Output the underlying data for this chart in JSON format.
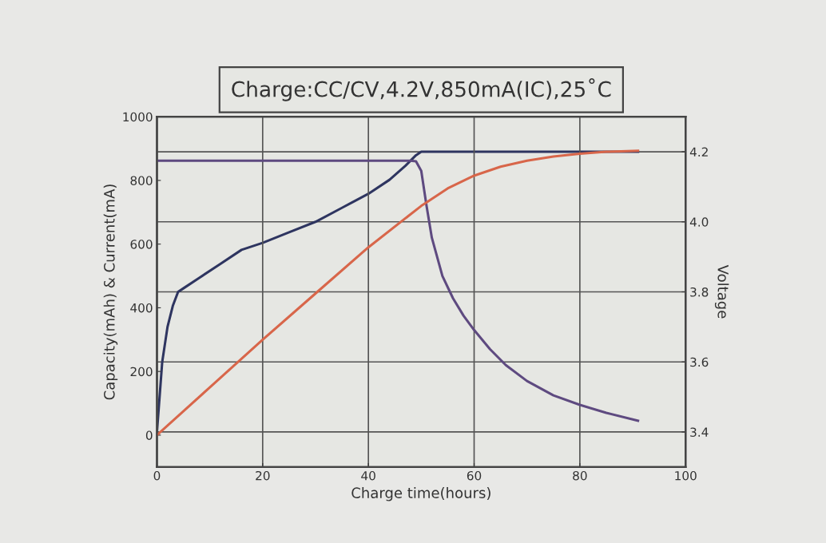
{
  "chart_data": {
    "type": "line",
    "title": "Charge:CC/CV,4.2V,850mA(IC),25˚C",
    "xlabel": "Charge time(hours)",
    "ylabel": "Capacity(mAh) & Current(mA)",
    "y2label": "Voltage",
    "xlim": [
      0,
      100
    ],
    "xticks": [
      0,
      20,
      40,
      60,
      80,
      100
    ],
    "ylim": [
      -100,
      1000
    ],
    "yticks": [
      0,
      200,
      400,
      600,
      800,
      1000
    ],
    "y2lim": [
      3.3,
      4.3
    ],
    "y2ticks": [
      3.4,
      3.6,
      3.8,
      {
        "value": 4.0,
        "label": "4.0"
      },
      4.2
    ],
    "grid": true,
    "marker": "none",
    "line_style": "solid",
    "series": [
      {
        "color": "#2e3560",
        "axis": "y2",
        "x": [
          0,
          0.5,
          1,
          2,
          3,
          4,
          5,
          8,
          12,
          16,
          20,
          25,
          30,
          35,
          40,
          44,
          47,
          49,
          50,
          51,
          60,
          70,
          80,
          91
        ],
        "values": [
          3.4,
          3.5,
          3.6,
          3.7,
          3.76,
          3.8,
          3.81,
          3.84,
          3.88,
          3.92,
          3.94,
          3.97,
          4.0,
          4.04,
          4.08,
          4.12,
          4.16,
          4.19,
          4.2,
          4.2,
          4.2,
          4.2,
          4.2,
          4.2
        ]
      },
      {
        "color": "#5e4a80",
        "x": [
          0,
          10,
          20,
          30,
          40,
          48,
          49,
          50,
          51,
          52,
          54,
          56,
          58,
          60,
          63,
          66,
          70,
          75,
          80,
          85,
          91
        ],
        "values": [
          862,
          862,
          862,
          862,
          862,
          862,
          860,
          830,
          720,
          620,
          500,
          430,
          375,
          330,
          270,
          220,
          170,
          125,
          95,
          70,
          45
        ]
      },
      {
        "color": "#d8664a",
        "x": [
          0,
          10,
          20,
          30,
          40,
          50,
          55,
          60,
          65,
          70,
          75,
          80,
          85,
          91
        ],
        "values": [
          0,
          150,
          300,
          445,
          590,
          720,
          775,
          815,
          843,
          862,
          875,
          884,
          890,
          893
        ]
      }
    ]
  }
}
